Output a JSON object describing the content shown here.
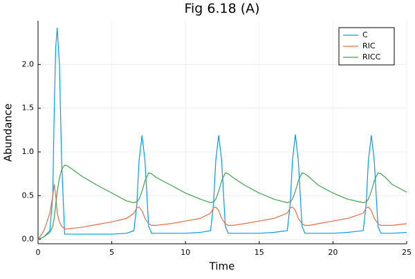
{
  "chart_data": {
    "type": "line",
    "title": "Fig 6.18 (A)",
    "x_label": "Time",
    "y_label": "Abundance",
    "x": [
      0,
      0.4,
      0.8,
      1.0,
      1.1,
      1.2,
      1.3,
      1.45,
      1.6,
      1.8,
      2.0,
      2.5,
      3,
      4,
      5,
      6,
      6.5,
      6.7,
      6.85,
      7.05,
      7.25,
      7.5,
      7.7,
      8,
      9,
      10,
      11,
      11.7,
      11.9,
      12.05,
      12.25,
      12.45,
      12.7,
      12.9,
      13.2,
      14,
      15,
      16,
      16.9,
      17.1,
      17.25,
      17.45,
      17.65,
      17.9,
      18.1,
      18.4,
      19,
      20,
      21,
      22.05,
      22.25,
      22.4,
      22.6,
      22.8,
      23.05,
      23.25,
      23.55,
      24,
      25
    ],
    "series": [
      {
        "name": "C",
        "color": "#009af9",
        "values": [
          0,
          0.03,
          0.1,
          0.5,
          1.5,
          2.2,
          2.42,
          2.0,
          0.9,
          0.06,
          0.06,
          0.06,
          0.06,
          0.06,
          0.06,
          0.07,
          0.1,
          0.4,
          0.9,
          1.19,
          0.9,
          0.15,
          0.07,
          0.07,
          0.07,
          0.07,
          0.08,
          0.1,
          0.4,
          0.9,
          1.19,
          0.9,
          0.15,
          0.07,
          0.07,
          0.07,
          0.07,
          0.08,
          0.1,
          0.4,
          0.9,
          1.2,
          0.9,
          0.15,
          0.07,
          0.07,
          0.07,
          0.07,
          0.08,
          0.1,
          0.4,
          0.9,
          1.19,
          0.9,
          0.15,
          0.07,
          0.07,
          0.07,
          0.08
        ]
      },
      {
        "name": "RIC",
        "color": "#e26f46",
        "values": [
          0,
          0.1,
          0.3,
          0.5,
          0.63,
          0.5,
          0.3,
          0.2,
          0.15,
          0.12,
          0.12,
          0.13,
          0.14,
          0.17,
          0.2,
          0.24,
          0.3,
          0.36,
          0.37,
          0.33,
          0.24,
          0.18,
          0.16,
          0.16,
          0.18,
          0.21,
          0.24,
          0.3,
          0.36,
          0.37,
          0.33,
          0.24,
          0.18,
          0.16,
          0.16,
          0.18,
          0.21,
          0.24,
          0.3,
          0.36,
          0.37,
          0.33,
          0.24,
          0.18,
          0.16,
          0.16,
          0.18,
          0.21,
          0.24,
          0.3,
          0.36,
          0.37,
          0.33,
          0.24,
          0.18,
          0.16,
          0.16,
          0.16,
          0.18
        ]
      },
      {
        "name": "RICC",
        "color": "#3da44d",
        "values": [
          0,
          0.03,
          0.08,
          0.15,
          0.25,
          0.4,
          0.55,
          0.7,
          0.8,
          0.85,
          0.84,
          0.78,
          0.72,
          0.62,
          0.53,
          0.44,
          0.42,
          0.43,
          0.46,
          0.55,
          0.67,
          0.76,
          0.75,
          0.71,
          0.62,
          0.53,
          0.46,
          0.42,
          0.43,
          0.46,
          0.55,
          0.67,
          0.76,
          0.75,
          0.71,
          0.62,
          0.53,
          0.46,
          0.42,
          0.43,
          0.46,
          0.55,
          0.67,
          0.76,
          0.75,
          0.71,
          0.62,
          0.53,
          0.46,
          0.42,
          0.43,
          0.46,
          0.55,
          0.67,
          0.76,
          0.75,
          0.71,
          0.63,
          0.54
        ]
      }
    ],
    "xlim": [
      0,
      25
    ],
    "ylim": [
      -0.05,
      2.5
    ],
    "xticks": [
      0,
      5,
      10,
      15,
      20,
      25
    ],
    "yticks": [
      {
        "value": 0,
        "label": "0.0"
      },
      {
        "value": 0.5,
        "label": "0.5"
      },
      {
        "value": 1,
        "label": "1.0"
      },
      {
        "value": 1.5,
        "label": "1.5"
      },
      {
        "value": 2,
        "label": "2.0"
      }
    ],
    "grid": true,
    "legend": "top-right"
  }
}
